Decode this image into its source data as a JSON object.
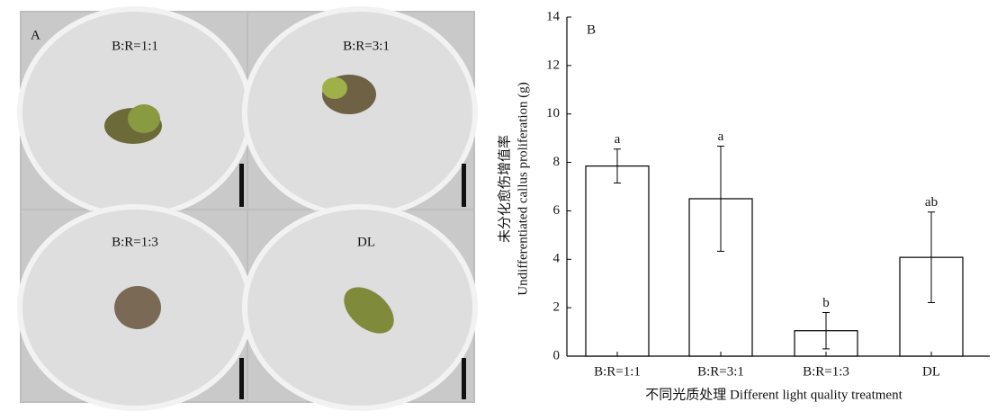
{
  "photo_panel": {
    "label": "A",
    "dishes": [
      "B:R=1:1",
      "B:R=3:1",
      "B:R=1:3",
      "DL"
    ]
  },
  "chart_data": {
    "type": "bar",
    "panel_label": "B",
    "ylabel": [
      "未分化愈伤增值率",
      "Undifferentiated callus proliferation (g)"
    ],
    "xlabel": "不同光质处理 Different light quality treatment",
    "categories": [
      "B:R=1:1",
      "B:R=3:1",
      "B:R=1:3",
      "DL"
    ],
    "values": [
      7.85,
      6.5,
      1.05,
      4.08
    ],
    "errors": [
      0.7,
      2.17,
      0.75,
      1.87
    ],
    "annotations": [
      "a",
      "a",
      "b",
      "ab"
    ],
    "color": "#ffffff",
    "ylim": [
      0,
      14
    ],
    "yticks": [
      0,
      2,
      4,
      6,
      8,
      10,
      12,
      14
    ]
  }
}
